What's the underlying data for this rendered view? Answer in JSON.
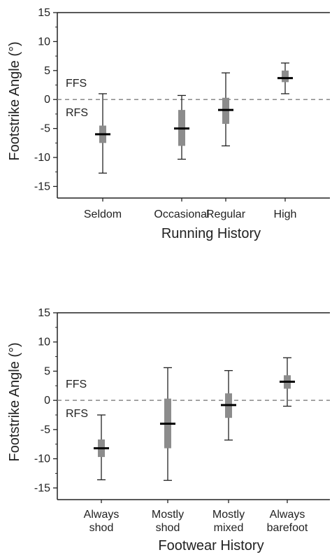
{
  "chart_data": [
    {
      "type": "box",
      "xlabel": "Running History",
      "ylabel": "Footstrike Angle (°)",
      "ylim": [
        -17,
        15
      ],
      "yticks": [
        15,
        10,
        5,
        0,
        -5,
        -10,
        -15
      ],
      "ytick_labels": [
        "15",
        "10",
        "5",
        "0",
        "-5",
        "-10",
        "-15"
      ],
      "reference_line": 0,
      "region_labels": {
        "upper": "FFS",
        "lower": "RFS"
      },
      "categories": [
        {
          "label_lines": [
            "Seldom"
          ],
          "median": -6,
          "q1": -7.5,
          "q3": -4.5,
          "whisker_low": -12.7,
          "whisker_high": 1
        },
        {
          "label_lines": [
            "Occasional"
          ],
          "median": -5,
          "q1": -8,
          "q3": -1.8,
          "whisker_low": -10.3,
          "whisker_high": 0.7
        },
        {
          "label_lines": [
            "Regular"
          ],
          "median": -1.8,
          "q1": -4.2,
          "q3": 0.3,
          "whisker_low": -8,
          "whisker_high": 4.6
        },
        {
          "label_lines": [
            "High"
          ],
          "median": 3.7,
          "q1": 3,
          "q3": 5,
          "whisker_low": 1,
          "whisker_high": 6.3
        }
      ]
    },
    {
      "type": "box",
      "xlabel": "Footwear History",
      "ylabel": "Footstrike Angle (°)",
      "ylim": [
        -17,
        15
      ],
      "yticks": [
        15,
        10,
        5,
        0,
        -5,
        -10,
        -15
      ],
      "ytick_labels": [
        "15",
        "10",
        "5",
        "0",
        "-5",
        "-10",
        "-15"
      ],
      "reference_line": 0,
      "region_labels": {
        "upper": "FFS",
        "lower": "RFS"
      },
      "categories": [
        {
          "label_lines": [
            "Always",
            "shod"
          ],
          "median": -8.2,
          "q1": -9.7,
          "q3": -6.7,
          "whisker_low": -13.6,
          "whisker_high": -2.5
        },
        {
          "label_lines": [
            "Mostly",
            "shod"
          ],
          "median": -4,
          "q1": -8.2,
          "q3": 0.3,
          "whisker_low": -13.7,
          "whisker_high": 5.6
        },
        {
          "label_lines": [
            "Mostly",
            "mixed"
          ],
          "median": -0.8,
          "q1": -3,
          "q3": 1.2,
          "whisker_low": -6.8,
          "whisker_high": 5.1
        },
        {
          "label_lines": [
            "Always",
            "barefoot"
          ],
          "median": 3.2,
          "q1": 2,
          "q3": 4.3,
          "whisker_low": -1,
          "whisker_high": 7.3
        }
      ]
    }
  ]
}
